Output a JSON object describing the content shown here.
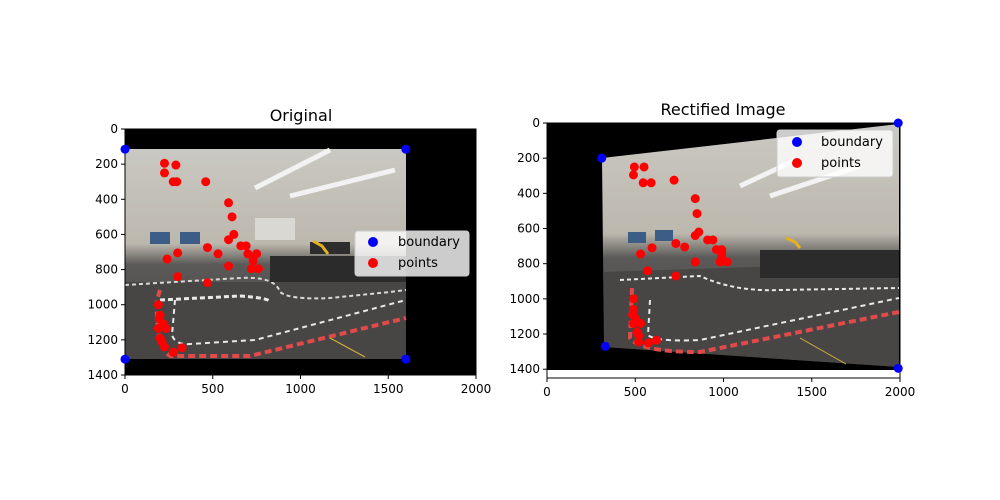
{
  "chart_data": [
    {
      "type": "scatter",
      "title": "Original",
      "xlabel": "",
      "ylabel": "",
      "xlim": [
        0,
        2000
      ],
      "ylim": [
        1400,
        0
      ],
      "y_inverted": true,
      "x_ticks": [
        "0",
        "500",
        "1000",
        "1500",
        "2000"
      ],
      "y_ticks": [
        "0",
        "200",
        "400",
        "600",
        "800",
        "1000",
        "1200",
        "1400"
      ],
      "background_image": "photo of lab room with red-and-white race track, black border regions",
      "legend": {
        "position": "center-right",
        "entries": [
          "boundary",
          "points"
        ]
      },
      "series": [
        {
          "name": "boundary",
          "color": "#0000ff",
          "points": [
            [
              0,
              115
            ],
            [
              1600,
              115
            ],
            [
              0,
              1310
            ],
            [
              1600,
              1310
            ]
          ]
        },
        {
          "name": "points",
          "color": "#ff0000",
          "points": [
            [
              225,
              195
            ],
            [
              290,
              205
            ],
            [
              225,
              250
            ],
            [
              275,
              300
            ],
            [
              295,
              300
            ],
            [
              460,
              300
            ],
            [
              590,
              420
            ],
            [
              610,
              500
            ],
            [
              620,
              600
            ],
            [
              590,
              630
            ],
            [
              660,
              665
            ],
            [
              690,
              665
            ],
            [
              300,
              705
            ],
            [
              470,
              675
            ],
            [
              530,
              710
            ],
            [
              240,
              740
            ],
            [
              700,
              710
            ],
            [
              750,
              710
            ],
            [
              730,
              730
            ],
            [
              730,
              750
            ],
            [
              590,
              780
            ],
            [
              720,
              795
            ],
            [
              760,
              795
            ],
            [
              300,
              840
            ],
            [
              470,
              875
            ],
            [
              190,
              1000
            ],
            [
              200,
              1060
            ],
            [
              195,
              1080
            ],
            [
              220,
              1110
            ],
            [
              190,
              1135
            ],
            [
              235,
              1135
            ],
            [
              200,
              1190
            ],
            [
              210,
              1210
            ],
            [
              325,
              1245
            ],
            [
              275,
              1270
            ],
            [
              225,
              1240
            ]
          ]
        }
      ]
    },
    {
      "type": "scatter",
      "title": "Rectified Image",
      "xlabel": "",
      "ylabel": "",
      "xlim": [
        0,
        2000
      ],
      "ylim": [
        1450,
        0
      ],
      "y_inverted": true,
      "x_ticks": [
        "0",
        "500",
        "1000",
        "1500",
        "2000"
      ],
      "y_ticks": [
        "0",
        "200",
        "400",
        "600",
        "800",
        "1000",
        "1200",
        "1400"
      ],
      "background_image": "perspective-rectified photo of lab room with race track",
      "legend": {
        "position": "top-right",
        "entries": [
          "boundary",
          "points"
        ]
      },
      "series": [
        {
          "name": "boundary",
          "color": "#0000ff",
          "points": [
            [
              310,
              200
            ],
            [
              1990,
              0
            ],
            [
              330,
              1270
            ],
            [
              1990,
              1395
            ]
          ]
        },
        {
          "name": "points",
          "color": "#ff0000",
          "points": [
            [
              495,
              250
            ],
            [
              550,
              250
            ],
            [
              490,
              295
            ],
            [
              545,
              340
            ],
            [
              590,
              340
            ],
            [
              720,
              325
            ],
            [
              840,
              430
            ],
            [
              850,
              515
            ],
            [
              860,
              620
            ],
            [
              840,
              640
            ],
            [
              910,
              665
            ],
            [
              940,
              665
            ],
            [
              595,
              710
            ],
            [
              730,
              685
            ],
            [
              780,
              705
            ],
            [
              530,
              745
            ],
            [
              960,
              720
            ],
            [
              990,
              720
            ],
            [
              990,
              735
            ],
            [
              990,
              760
            ],
            [
              840,
              790
            ],
            [
              980,
              790
            ],
            [
              1020,
              790
            ],
            [
              570,
              840
            ],
            [
              730,
              870
            ],
            [
              490,
              1000
            ],
            [
              490,
              1060
            ],
            [
              485,
              1090
            ],
            [
              500,
              1110
            ],
            [
              490,
              1140
            ],
            [
              530,
              1140
            ],
            [
              510,
              1190
            ],
            [
              520,
              1210
            ],
            [
              620,
              1235
            ],
            [
              575,
              1250
            ],
            [
              520,
              1245
            ]
          ]
        }
      ]
    }
  ]
}
